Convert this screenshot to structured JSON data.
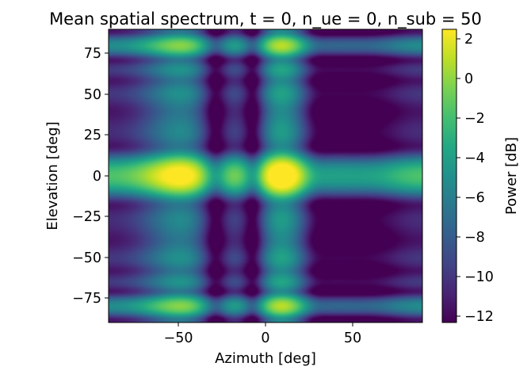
{
  "chart_data": {
    "type": "heatmap",
    "title": "Mean spatial spectrum, t = 0, n_ue = 0, n_sub = 50",
    "xlabel": "Azimuth [deg]",
    "ylabel": "Elevation [deg]",
    "xlim": [
      -90,
      90
    ],
    "ylim": [
      -90,
      90
    ],
    "xticks": [
      -50,
      0,
      50
    ],
    "xtick_labels": [
      "−50",
      "0",
      "50"
    ],
    "yticks": [
      75,
      50,
      25,
      0,
      -25,
      -50,
      -75
    ],
    "ytick_labels": [
      "75",
      "50",
      "25",
      "0",
      "−25",
      "−50",
      "−75"
    ],
    "colorbar": {
      "label": "Power [dB]",
      "range": [
        -12.4,
        2.4
      ],
      "ticks": [
        2,
        0,
        -2,
        -4,
        -6,
        -8,
        -10,
        -12
      ],
      "tick_labels": [
        "2",
        "0",
        "−2",
        "−4",
        "−6",
        "−8",
        "−10",
        "−12"
      ],
      "colormap": "viridis"
    },
    "peaks_approx": [
      {
        "azimuth": 12,
        "elevation": 0,
        "power_db": 2.2
      },
      {
        "azimuth": -55,
        "elevation": 0,
        "power_db": 1.8
      },
      {
        "azimuth": 12,
        "elevation": -80,
        "power_db": 2.0
      },
      {
        "azimuth": 12,
        "elevation": 80,
        "power_db": 2.0
      },
      {
        "azimuth": -55,
        "elevation": -80,
        "power_db": 1.6
      },
      {
        "azimuth": -55,
        "elevation": 80,
        "power_db": 1.6
      }
    ],
    "grid": false
  }
}
